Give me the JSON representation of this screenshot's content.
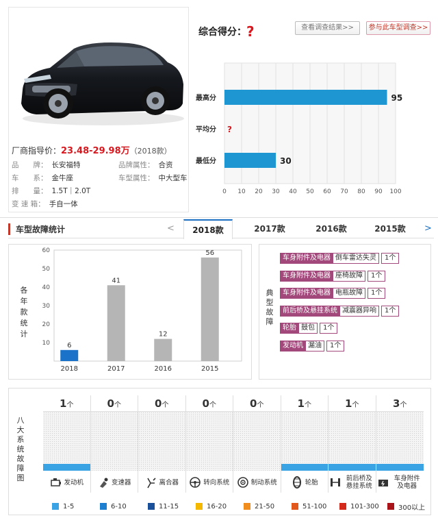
{
  "car": {
    "price_label": "厂商指导价：",
    "price": "23.48-29.98万",
    "year": "（2018款）",
    "specs": [
      {
        "k": "品　　牌：",
        "v": "长安福特"
      },
      {
        "k": "品牌属性：",
        "v": "合资"
      },
      {
        "k": "车　　系：",
        "v": "金牛座"
      },
      {
        "k": "车型属性：",
        "v": "中大型车"
      },
      {
        "k": "排　　量：",
        "v": "1.5T｜2.0T"
      },
      {
        "k": "变 速 箱：",
        "v": "手自一体"
      }
    ]
  },
  "score": {
    "title": "综合得分：",
    "mark": "?",
    "btn_view": "查看调查结果>>",
    "btn_join": "参与此车型调查>>"
  },
  "chart_data": [
    {
      "type": "bar",
      "orientation": "horizontal",
      "categories": [
        "最高分",
        "平均分",
        "最低分"
      ],
      "values": [
        95,
        null,
        30
      ],
      "value_labels": [
        "95",
        "?",
        "30"
      ],
      "xlim": [
        0,
        100
      ],
      "xticks": [
        0,
        10,
        20,
        30,
        40,
        50,
        60,
        70,
        80,
        90,
        100
      ],
      "grid": true,
      "bar_color": "#1e96d2"
    },
    {
      "type": "bar",
      "categories": [
        "2018",
        "2017",
        "2016",
        "2015"
      ],
      "values": [
        6,
        41,
        12,
        56
      ],
      "ylim": [
        0,
        60
      ],
      "yticks": [
        10,
        20,
        30,
        40,
        50,
        60
      ],
      "ylabel": "各年款统计",
      "colors": [
        "#1a73c8",
        "#b5b5b5",
        "#b5b5b5",
        "#b5b5b5"
      ]
    }
  ],
  "tabs": {
    "label": "车型故障统计",
    "prev": "<",
    "next": ">",
    "items": [
      "2018款",
      "2017款",
      "2016款",
      "2015款"
    ],
    "active": 0
  },
  "faults": {
    "label": "典型故障",
    "items": [
      {
        "cat": "车身附件及电器",
        "issue": "倒车雷达失灵",
        "cnt": "1个"
      },
      {
        "cat": "车身附件及电器",
        "issue": "座椅故障",
        "cnt": "1个"
      },
      {
        "cat": "车身附件及电器",
        "issue": "电瓶故障",
        "cnt": "1个"
      },
      {
        "cat": "前后桥及悬挂系统",
        "issue": "减震器异响",
        "cnt": "1个"
      },
      {
        "cat": "轮胎",
        "issue": "鼓包",
        "cnt": "1个"
      },
      {
        "cat": "发动机",
        "issue": "漏油",
        "cnt": "1个"
      }
    ]
  },
  "systems": {
    "label": "八大系统故障图",
    "unit": "个",
    "items": [
      {
        "name": "发动机",
        "count": 1,
        "icon": "engine-icon"
      },
      {
        "name": "变速器",
        "count": 0,
        "icon": "gearbox-icon"
      },
      {
        "name": "离合器",
        "count": 0,
        "icon": "clutch-icon"
      },
      {
        "name": "转向系统",
        "count": 0,
        "icon": "steering-wheel-icon"
      },
      {
        "name": "制动系统",
        "count": 0,
        "icon": "brake-disc-icon"
      },
      {
        "name": "轮胎",
        "count": 1,
        "icon": "tire-icon"
      },
      {
        "name": "前后桥及悬挂系统",
        "count": 1,
        "icon": "suspension-icon"
      },
      {
        "name": "车身附件及电器",
        "count": 3,
        "icon": "body-electric-icon"
      }
    ],
    "fill_color": "#3aa3e3"
  },
  "legend": [
    {
      "label": "1-5",
      "color": "#3aa3e3"
    },
    {
      "label": "6-10",
      "color": "#1e7fd0"
    },
    {
      "label": "11-15",
      "color": "#1a4f9a"
    },
    {
      "label": "16-20",
      "color": "#f5b800"
    },
    {
      "label": "21-50",
      "color": "#f18d1e"
    },
    {
      "label": "51-100",
      "color": "#e2581c"
    },
    {
      "label": "101-300",
      "color": "#d42a1c"
    },
    {
      "label": "300以上",
      "color": "#a8141a"
    }
  ]
}
